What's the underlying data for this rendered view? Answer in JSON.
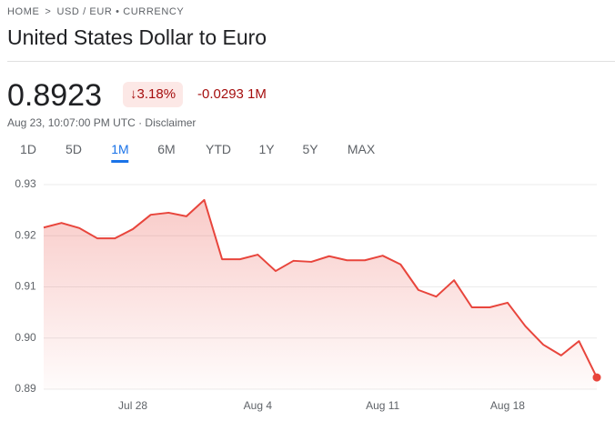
{
  "breadcrumb": [
    "HOME",
    "USD / EUR • CURRENCY"
  ],
  "title": "United States Dollar to Euro",
  "price": "0.8923",
  "change_percent": "3.18%",
  "change_value": "-0.0293",
  "change_period": "1M",
  "timestamp": "Aug 23, 10:07:00 PM UTC",
  "disclaimer": "Disclaimer",
  "tabs": [
    "1D",
    "5D",
    "1M",
    "6M",
    "YTD",
    "1Y",
    "5Y",
    "MAX"
  ],
  "active_tab": 2,
  "chart_data": {
    "type": "line",
    "categories": [
      null,
      null,
      null,
      null,
      null,
      "Jul 28",
      null,
      null,
      null,
      null,
      null,
      null,
      "Aug 4",
      null,
      null,
      null,
      null,
      null,
      null,
      "Aug 11",
      null,
      null,
      null,
      null,
      null,
      null,
      "Aug 18",
      null,
      null,
      null,
      null,
      null
    ],
    "series": [
      {
        "color": "#e8453c",
        "values": [
          0.9216,
          0.9225,
          0.9215,
          0.9195,
          0.9195,
          0.9213,
          0.9241,
          0.9245,
          0.9238,
          0.927,
          0.9154,
          0.9154,
          0.9163,
          0.9131,
          0.9151,
          0.9149,
          0.916,
          0.9152,
          0.9152,
          0.9161,
          0.9144,
          0.9094,
          0.9081,
          0.9113,
          0.906,
          0.906,
          0.9069,
          0.9023,
          0.8987,
          0.8966,
          0.8994,
          0.8923
        ]
      }
    ],
    "ylim": [
      0.89,
      0.93
    ],
    "yticks": [
      0.89,
      {
        "value": 0.9,
        "label": "0.90"
      },
      0.91,
      0.92,
      0.93
    ],
    "grid": true
  }
}
